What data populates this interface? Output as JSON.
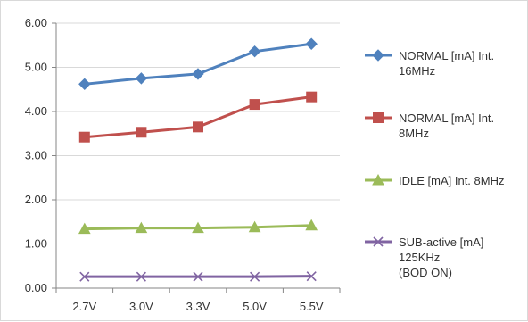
{
  "chart_data": {
    "type": "line",
    "title": "",
    "xlabel": "",
    "ylabel": "",
    "categories": [
      "2.7V",
      "3.0V",
      "3.3V",
      "5.0V",
      "5.5V"
    ],
    "ylim": [
      0,
      6
    ],
    "yticks": [
      "0.00",
      "1.00",
      "2.00",
      "3.00",
      "4.00",
      "5.00",
      "6.00"
    ],
    "grid": "horizontal",
    "legend_position": "right",
    "series": [
      {
        "name": "NORMAL [mA] Int. 16MHz",
        "legend_lines": [
          "NORMAL [mA] Int.",
          "16MHz"
        ],
        "color": "#4F81BD",
        "marker": "diamond",
        "values": [
          4.62,
          4.75,
          4.85,
          5.36,
          5.53
        ]
      },
      {
        "name": "NORMAL [mA] Int. 8MHz",
        "legend_lines": [
          "NORMAL [mA] Int.",
          "8MHz"
        ],
        "color": "#C0504D",
        "marker": "square",
        "values": [
          3.42,
          3.53,
          3.65,
          4.16,
          4.33
        ]
      },
      {
        "name": "IDLE [mA] Int. 8MHz",
        "legend_lines": [
          "IDLE [mA] Int. 8MHz"
        ],
        "color": "#9BBB59",
        "marker": "triangle",
        "values": [
          1.34,
          1.36,
          1.36,
          1.38,
          1.42
        ]
      },
      {
        "name": "SUB-active [mA] 125KHz (BOD ON)",
        "legend_lines": [
          "SUB-active [mA]",
          "125KHz",
          "(BOD ON)"
        ],
        "color": "#8064A2",
        "marker": "x",
        "values": [
          0.26,
          0.26,
          0.26,
          0.26,
          0.27
        ]
      }
    ]
  }
}
